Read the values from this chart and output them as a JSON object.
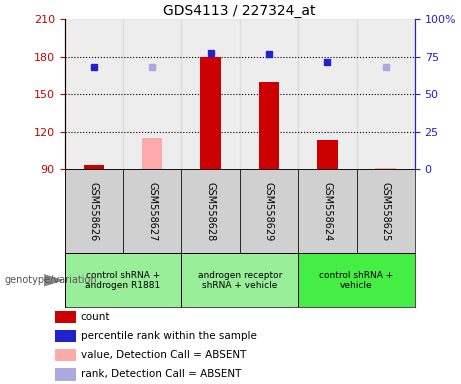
{
  "title": "GDS4113 / 227324_at",
  "samples": [
    "GSM558626",
    "GSM558627",
    "GSM558628",
    "GSM558629",
    "GSM558624",
    "GSM558625"
  ],
  "bar_colors": [
    "#cc0000",
    "#ffaaaa",
    "#cc0000",
    "#cc0000",
    "#cc0000",
    "#ffaaaa"
  ],
  "bar_values": [
    93,
    115,
    180,
    160,
    113,
    91
  ],
  "dot_colors": [
    "#2222cc",
    "#aaaadd",
    "#2222cc",
    "#2222cc",
    "#2222cc",
    "#aaaadd"
  ],
  "dot_values": [
    172,
    172,
    183,
    182,
    176,
    172
  ],
  "ylim_left": [
    90,
    210
  ],
  "ylim_right": [
    0,
    100
  ],
  "yticks_left": [
    90,
    120,
    150,
    180,
    210
  ],
  "yticks_right": [
    0,
    25,
    50,
    75,
    100
  ],
  "grid_values": [
    120,
    150,
    180
  ],
  "col_bg_colors": [
    "#d0d0d0",
    "#d0d0d0",
    "#d0d0d0",
    "#d0d0d0",
    "#d0d0d0",
    "#d0d0d0"
  ],
  "group_labels": [
    {
      "text": "control shRNA +\nandrogen R1881",
      "start": 0,
      "end": 2,
      "color": "#99ee99"
    },
    {
      "text": "androgen receptor\nshRNA + vehicle",
      "start": 2,
      "end": 4,
      "color": "#99ee99"
    },
    {
      "text": "control shRNA +\nvehicle",
      "start": 4,
      "end": 6,
      "color": "#44ee44"
    }
  ],
  "legend_items": [
    {
      "label": "count",
      "color": "#cc0000"
    },
    {
      "label": "percentile rank within the sample",
      "color": "#2222cc"
    },
    {
      "label": "value, Detection Call = ABSENT",
      "color": "#ffaaaa"
    },
    {
      "label": "rank, Detection Call = ABSENT",
      "color": "#aaaadd"
    }
  ],
  "left_tick_color": "#cc0000",
  "right_tick_color": "#2222cc",
  "genotype_label": "genotype/variation"
}
